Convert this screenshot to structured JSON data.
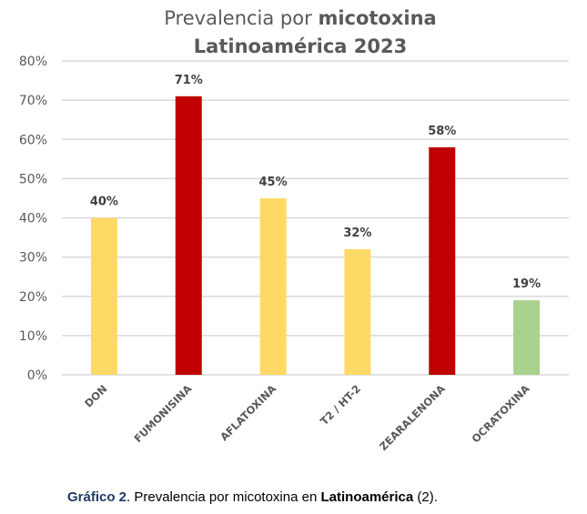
{
  "chart_data": {
    "type": "bar",
    "title": {
      "line1_regular": "Prevalencia por ",
      "line1_bold": "micotoxina",
      "line2": "Latinoamérica 2023"
    },
    "categories": [
      "DON",
      "FUMONISINA",
      "AFLATOXINA",
      "T2 / HT-2",
      "ZEARALENONA",
      "OCRATOXINA"
    ],
    "values": [
      40,
      71,
      45,
      32,
      58,
      19
    ],
    "data_labels": [
      "40%",
      "71%",
      "45%",
      "32%",
      "58%",
      "19%"
    ],
    "bar_colors": [
      "#FFD966",
      "#C00000",
      "#FFD966",
      "#FFD966",
      "#C00000",
      "#A9D18E"
    ],
    "xlabel": "",
    "ylabel": "",
    "ylim": [
      0,
      80
    ],
    "y_ticks": [
      0,
      10,
      20,
      30,
      40,
      50,
      60,
      70,
      80
    ],
    "y_tick_labels": [
      "0%",
      "10%",
      "20%",
      "30%",
      "40%",
      "50%",
      "60%",
      "70%",
      "80%"
    ],
    "grid": true,
    "gridline_color": "#D9D9D9",
    "legend": "none",
    "unit": "%"
  },
  "caption": {
    "label": "Gráfico 2",
    "text_before": ". Prevalencia por micotoxina en ",
    "bold": "Latinoamérica",
    "text_after": " (2)."
  }
}
